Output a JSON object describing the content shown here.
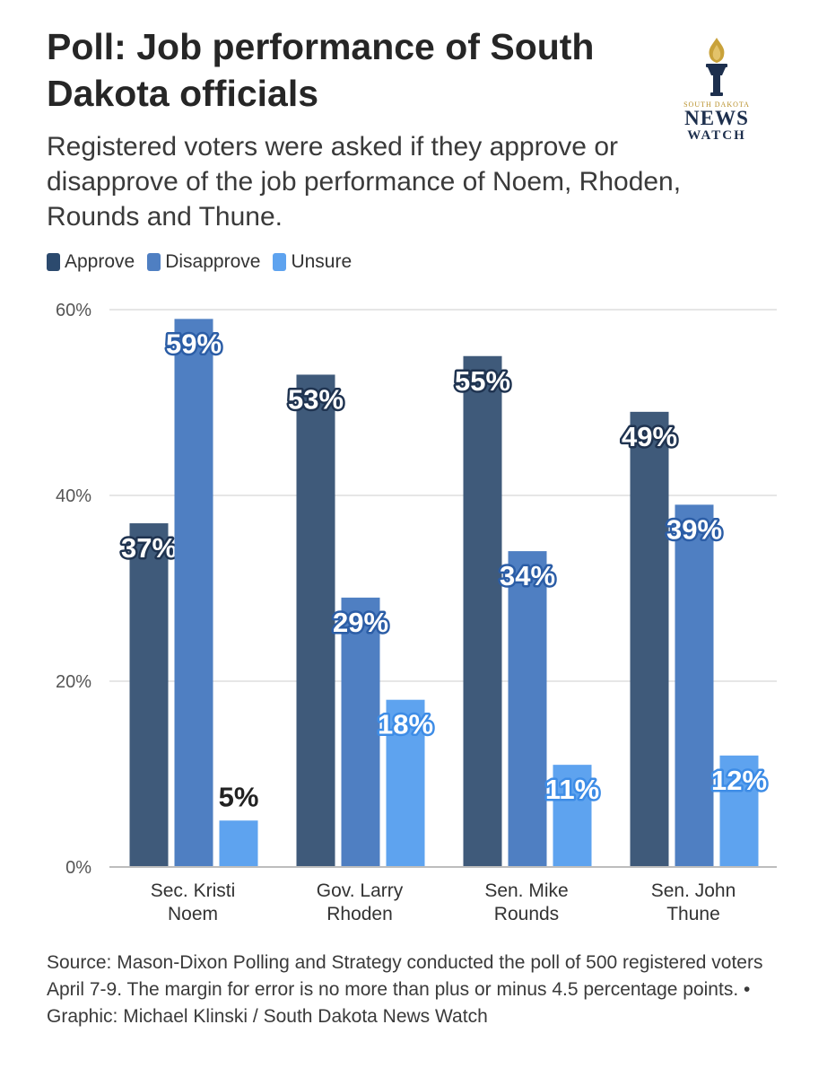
{
  "header": {
    "title": "Poll: Job performance of South Dakota officials",
    "subtitle": "Registered voters were asked if they approve or disapprove of the job performance of Noem, Rhoden, Rounds and Thune."
  },
  "logo": {
    "state": "SOUTH DAKOTA",
    "news": "NEWS",
    "watch": "WATCH",
    "icon": "torch-icon"
  },
  "legend": [
    {
      "label": "Approve",
      "color": "#2c4a6e"
    },
    {
      "label": "Disapprove",
      "color": "#4f7fc2"
    },
    {
      "label": "Unsure",
      "color": "#5ea3ef"
    }
  ],
  "chart_data": {
    "type": "bar",
    "categories": [
      "Sec. Kristi\nNoem",
      "Gov. Larry\nRhoden",
      "Sen. Mike\nRounds",
      "Sen. John\nThune"
    ],
    "series": [
      {
        "name": "Approve",
        "color": "#3f5a7a",
        "label_color": "#ffffff",
        "label_stroke": "#1f3350",
        "values": [
          37,
          53,
          55,
          49
        ]
      },
      {
        "name": "Disapprove",
        "color": "#4f7fc2",
        "label_color": "#ffffff",
        "label_stroke": "#2b5da6",
        "values": [
          59,
          29,
          34,
          39
        ]
      },
      {
        "name": "Unsure",
        "color": "#5ea3ef",
        "label_color": "#ffffff",
        "label_stroke": "#3d8ce6",
        "values": [
          5,
          18,
          11,
          12
        ]
      }
    ],
    "y_ticks": [
      "0%",
      "20%",
      "40%",
      "60%"
    ],
    "y_tick_values": [
      0,
      20,
      40,
      60
    ],
    "ylim": [
      0,
      60
    ],
    "value_suffix": "%",
    "grid": true
  },
  "footer": {
    "source": "Source: Mason-Dixon Polling and Strategy conducted the poll of 500 registered voters April 7-9. The margin for error is no more than plus or minus 4.5 percentage points. • Graphic: Michael Klinski / South Dakota News Watch"
  }
}
